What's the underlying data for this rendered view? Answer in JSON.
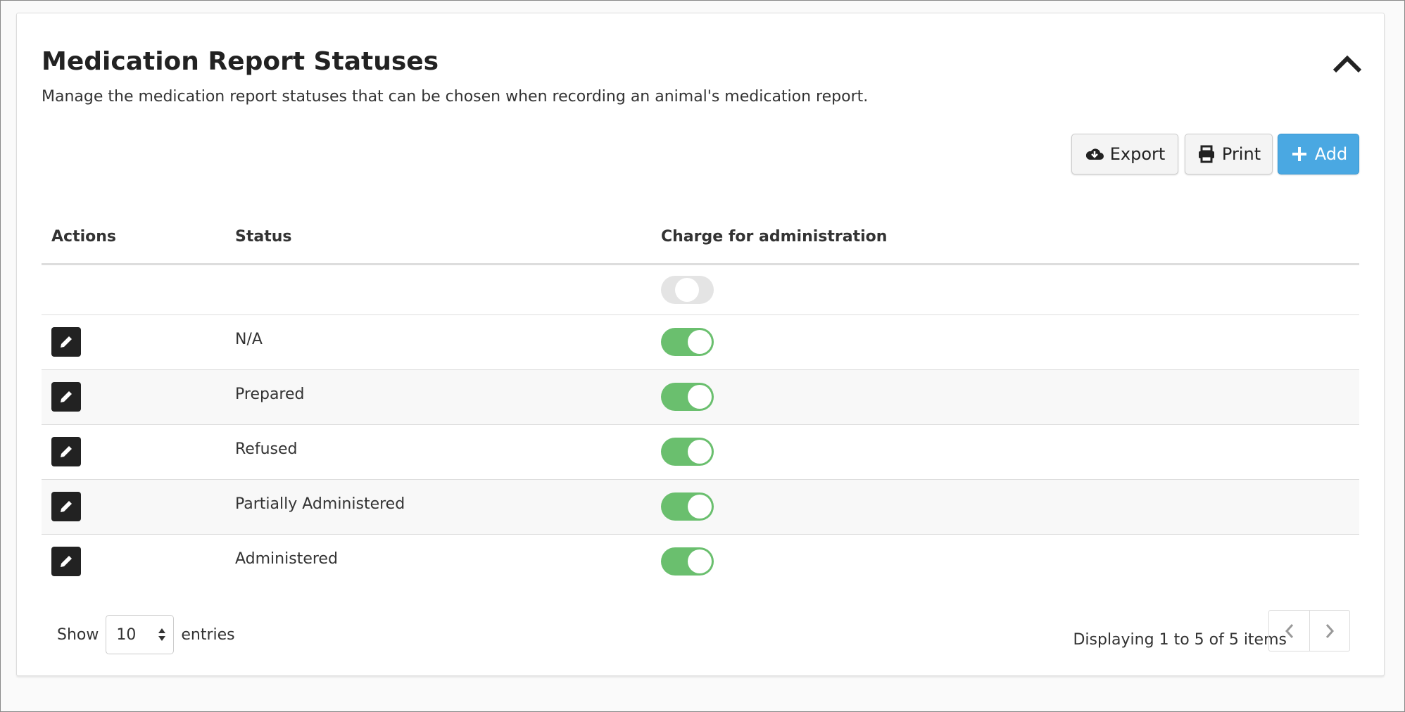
{
  "header": {
    "title": "Medication Report Statuses",
    "subtitle": "Manage the medication report statuses that can be chosen when recording an animal's medication report."
  },
  "toolbar": {
    "export_label": "Export",
    "print_label": "Print",
    "add_label": "Add",
    "add_color": "#4aa8e2"
  },
  "table": {
    "columns": [
      "Actions",
      "Status",
      "Charge for administration"
    ],
    "filter": {
      "charge_toggle": "indeterminate"
    },
    "rows": [
      {
        "status": "N/A",
        "charge": true
      },
      {
        "status": "Prepared",
        "charge": true
      },
      {
        "status": "Refused",
        "charge": true
      },
      {
        "status": "Partially Administered",
        "charge": true
      },
      {
        "status": "Administered",
        "charge": true
      }
    ]
  },
  "footer": {
    "show_label": "Show",
    "page_size": "10",
    "entries_label": "entries",
    "display_text": "Displaying 1 to 5 of 5 items"
  },
  "colors": {
    "toggle_on": "#6abf6e",
    "toggle_off": "#e4e4e4"
  }
}
